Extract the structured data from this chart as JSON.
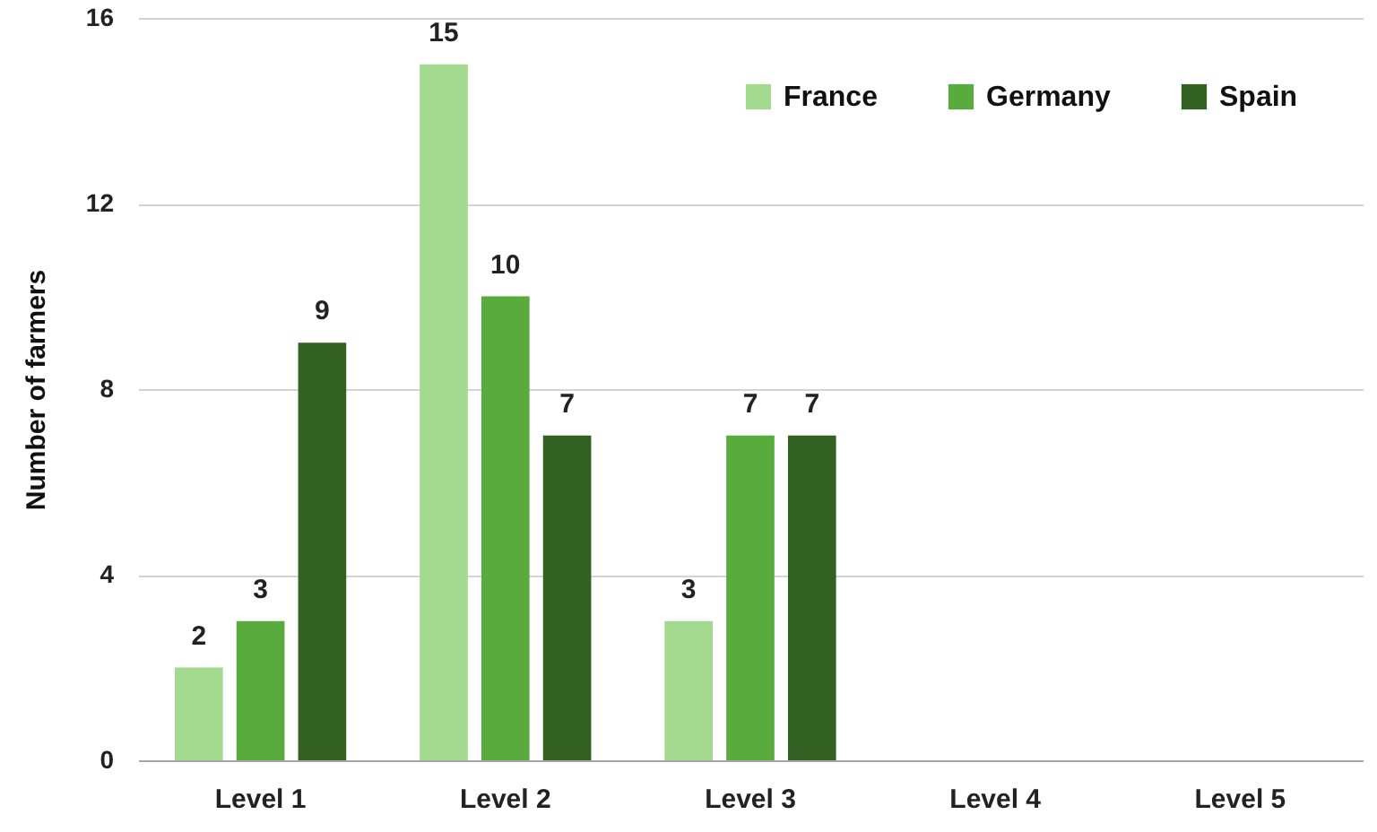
{
  "chart_data": {
    "type": "bar",
    "ylabel": "Number of farmers",
    "categories": [
      "Level 1",
      "Level 2",
      "Level 3",
      "Level 4",
      "Level 5"
    ],
    "series": [
      {
        "name": "France",
        "color": "#a3d98f",
        "values": [
          2,
          15,
          3,
          null,
          null
        ]
      },
      {
        "name": "Germany",
        "color": "#5aab3e",
        "values": [
          3,
          10,
          7,
          null,
          null
        ]
      },
      {
        "name": "Spain",
        "color": "#336122",
        "values": [
          9,
          7,
          7,
          null,
          null
        ]
      }
    ],
    "ylim": [
      0,
      16
    ],
    "yticks": [
      0,
      4,
      8,
      12,
      16
    ],
    "grid": "y",
    "legend": "top right",
    "data_labels": true
  }
}
